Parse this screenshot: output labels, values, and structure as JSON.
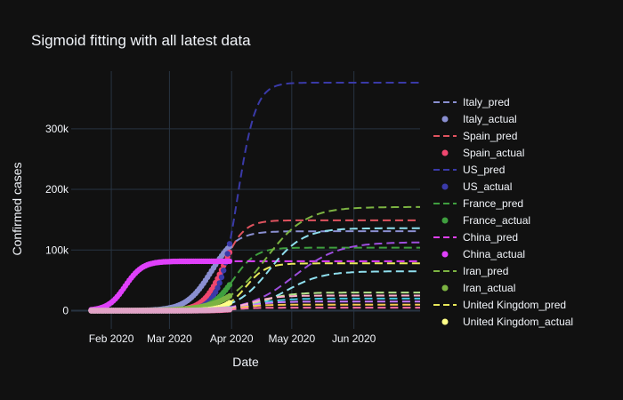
{
  "chart_data": {
    "type": "scatter",
    "title": "Sigmoid fitting with all latest data",
    "xlabel": "Date",
    "ylabel": "Confirmed cases",
    "x_ticks": [
      {
        "date": "2020-02-01",
        "label": "Feb 2020"
      },
      {
        "date": "2020-03-01",
        "label": "Mar 2020"
      },
      {
        "date": "2020-04-01",
        "label": "Apr 2020"
      },
      {
        "date": "2020-05-01",
        "label": "May 2020"
      },
      {
        "date": "2020-06-01",
        "label": "Jun 2020"
      }
    ],
    "xlim": [
      "2020-01-12",
      "2020-07-04"
    ],
    "y_ticks": [
      {
        "value": 0,
        "label": "0"
      },
      {
        "value": 100000,
        "label": "100k"
      },
      {
        "value": 200000,
        "label": "200k"
      },
      {
        "value": 300000,
        "label": "300k"
      }
    ],
    "ylim": [
      -30000,
      395000
    ],
    "grid": true,
    "legend_position": "right",
    "plot_background": "#111111",
    "series": [
      {
        "name": "Italy_pred",
        "kind": "pred",
        "color": "#8a8fd1",
        "L": 131000,
        "midpoint": "2020-03-22",
        "rate": 0.16,
        "x_start": "2020-01-22",
        "x_end": "2020-07-04"
      },
      {
        "name": "Italy_actual",
        "kind": "actual",
        "color": "#8a8fd1",
        "L": 131000,
        "midpoint": "2020-03-22",
        "rate": 0.16,
        "x_start": "2020-01-22",
        "x_end": "2020-03-31"
      },
      {
        "name": "Spain_pred",
        "kind": "pred",
        "color": "#e0535f",
        "L": 149000,
        "midpoint": "2020-03-28",
        "rate": 0.2,
        "x_start": "2020-01-22",
        "x_end": "2020-07-04"
      },
      {
        "name": "Spain_actual",
        "kind": "actual",
        "color": "#ef476f",
        "L": 149000,
        "midpoint": "2020-03-28",
        "rate": 0.2,
        "x_start": "2020-01-22",
        "x_end": "2020-03-31"
      },
      {
        "name": "US_pred",
        "kind": "pred",
        "color": "#3a3aa8",
        "L": 376000,
        "midpoint": "2020-04-04",
        "rate": 0.22,
        "x_start": "2020-01-22",
        "x_end": "2020-07-04"
      },
      {
        "name": "US_actual",
        "kind": "actual",
        "color": "#3a3aa8",
        "L": 376000,
        "midpoint": "2020-04-04",
        "rate": 0.22,
        "x_start": "2020-01-22",
        "x_end": "2020-03-31"
      },
      {
        "name": "France_pred",
        "kind": "pred",
        "color": "#3f9f3f",
        "L": 104000,
        "midpoint": "2020-04-02",
        "rate": 0.18,
        "x_start": "2020-01-22",
        "x_end": "2020-07-04"
      },
      {
        "name": "France_actual",
        "kind": "actual",
        "color": "#3f9f3f",
        "L": 104000,
        "midpoint": "2020-04-02",
        "rate": 0.18,
        "x_start": "2020-01-22",
        "x_end": "2020-03-31"
      },
      {
        "name": "China_pred",
        "kind": "pred",
        "color": "#e040fb",
        "L": 81500,
        "midpoint": "2020-02-08",
        "rate": 0.23,
        "x_start": "2020-01-22",
        "x_end": "2020-07-04"
      },
      {
        "name": "China_actual",
        "kind": "actual",
        "color": "#e040fb",
        "L": 81500,
        "midpoint": "2020-02-08",
        "rate": 0.23,
        "x_start": "2020-01-22",
        "x_end": "2020-03-31"
      },
      {
        "name": "Iran_pred",
        "kind": "pred",
        "color": "#7cb342",
        "L": 171000,
        "midpoint": "2020-04-18",
        "rate": 0.1,
        "x_start": "2020-01-22",
        "x_end": "2020-07-04"
      },
      {
        "name": "Iran_actual",
        "kind": "actual",
        "color": "#7cb342",
        "L": 171000,
        "midpoint": "2020-04-18",
        "rate": 0.1,
        "x_start": "2020-01-22",
        "x_end": "2020-03-31"
      },
      {
        "name": "United Kingdom_pred",
        "kind": "pred",
        "color": "#e8e85a",
        "L": 78000,
        "midpoint": "2020-04-08",
        "rate": 0.2,
        "x_start": "2020-01-22",
        "x_end": "2020-07-04"
      },
      {
        "name": "United Kingdom_actual",
        "kind": "actual",
        "color": "#ffff88",
        "L": 78000,
        "midpoint": "2020-04-08",
        "rate": 0.2,
        "x_start": "2020-01-22",
        "x_end": "2020-03-31"
      },
      {
        "name": "",
        "kind": "pred",
        "color": "#90e0ef",
        "L": 136000,
        "midpoint": "2020-04-20",
        "rate": 0.12,
        "x_start": "2020-01-22",
        "x_end": "2020-07-04"
      },
      {
        "name": "",
        "kind": "pred",
        "color": "#9d4edd",
        "L": 113000,
        "midpoint": "2020-05-02",
        "rate": 0.09,
        "x_start": "2020-01-22",
        "x_end": "2020-07-04"
      },
      {
        "name": "",
        "kind": "pred",
        "color": "#90e0ef",
        "L": 65000,
        "midpoint": "2020-04-28",
        "rate": 0.11,
        "x_start": "2020-01-22",
        "x_end": "2020-07-04"
      },
      {
        "name": "",
        "kind": "pred",
        "color": "#b5e48c",
        "L": 30000,
        "midpoint": "2020-04-15",
        "rate": 0.13,
        "x_start": "2020-01-22",
        "x_end": "2020-07-04"
      },
      {
        "name": "",
        "kind": "pred",
        "color": "#ffafcc",
        "L": 25000,
        "midpoint": "2020-04-10",
        "rate": 0.15,
        "x_start": "2020-01-22",
        "x_end": "2020-07-04"
      },
      {
        "name": "",
        "kind": "pred",
        "color": "#48cae4",
        "L": 20000,
        "midpoint": "2020-04-12",
        "rate": 0.14,
        "x_start": "2020-01-22",
        "x_end": "2020-07-04"
      },
      {
        "name": "",
        "kind": "pred",
        "color": "#c77dff",
        "L": 15000,
        "midpoint": "2020-04-08",
        "rate": 0.15,
        "x_start": "2020-01-22",
        "x_end": "2020-07-04"
      },
      {
        "name": "",
        "kind": "pred",
        "color": "#f9c74f",
        "L": 10000,
        "midpoint": "2020-04-05",
        "rate": 0.17,
        "x_start": "2020-01-22",
        "x_end": "2020-07-04"
      },
      {
        "name": "",
        "kind": "pred",
        "color": "#ff70a6",
        "L": 5000,
        "midpoint": "2020-04-03",
        "rate": 0.2,
        "x_start": "2020-01-22",
        "x_end": "2020-07-04"
      },
      {
        "name": "",
        "kind": "actual",
        "color": "#48cae4",
        "L": 20000,
        "midpoint": "2020-04-12",
        "rate": 0.14,
        "x_start": "2020-01-22",
        "x_end": "2020-03-31"
      },
      {
        "name": "",
        "kind": "actual",
        "color": "#ff70a6",
        "L": 5000,
        "midpoint": "2020-04-03",
        "rate": 0.2,
        "x_start": "2020-01-22",
        "x_end": "2020-03-31"
      },
      {
        "name": "",
        "kind": "actual",
        "color": "#e2a3c7",
        "L": 3000,
        "midpoint": "2020-03-25",
        "rate": 0.25,
        "x_start": "2020-01-22",
        "x_end": "2020-03-31"
      }
    ]
  }
}
